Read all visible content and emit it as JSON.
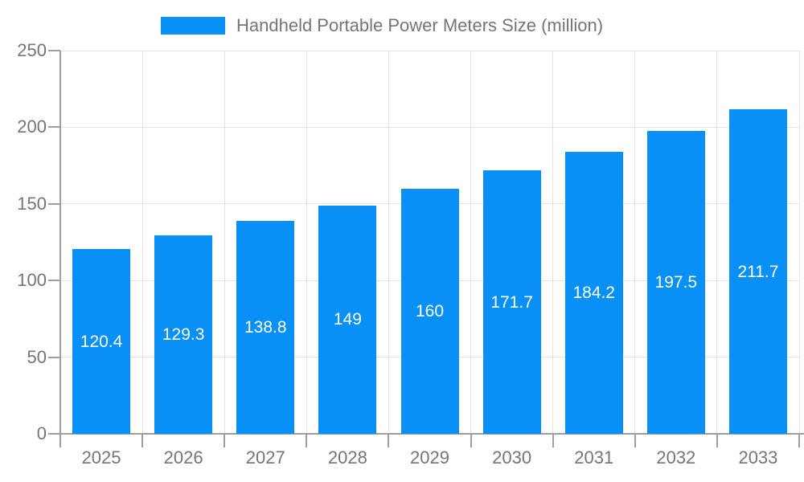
{
  "legend": {
    "label": "Handheld Portable Power Meters Size (million)"
  },
  "chart_data": {
    "type": "bar",
    "title": "",
    "series_name": "Handheld Portable Power Meters Size (million)",
    "categories": [
      "2025",
      "2026",
      "2027",
      "2028",
      "2029",
      "2030",
      "2031",
      "2032",
      "2033"
    ],
    "values": [
      120.4,
      129.3,
      138.8,
      149,
      160,
      171.7,
      184.2,
      197.5,
      211.7
    ],
    "xlabel": "",
    "ylabel": "",
    "ylim": [
      0,
      250
    ],
    "yticks": [
      0,
      50,
      100,
      150,
      200,
      250
    ],
    "grid": true,
    "legend_position": "top",
    "colors": {
      "bar": "#0890f6",
      "value_label": "#ffffff",
      "axis": "#9e9e9e",
      "grid": "#e3e3e3",
      "tick_label": "#757575",
      "legend_text": "#757575",
      "background": "#ffffff"
    }
  }
}
